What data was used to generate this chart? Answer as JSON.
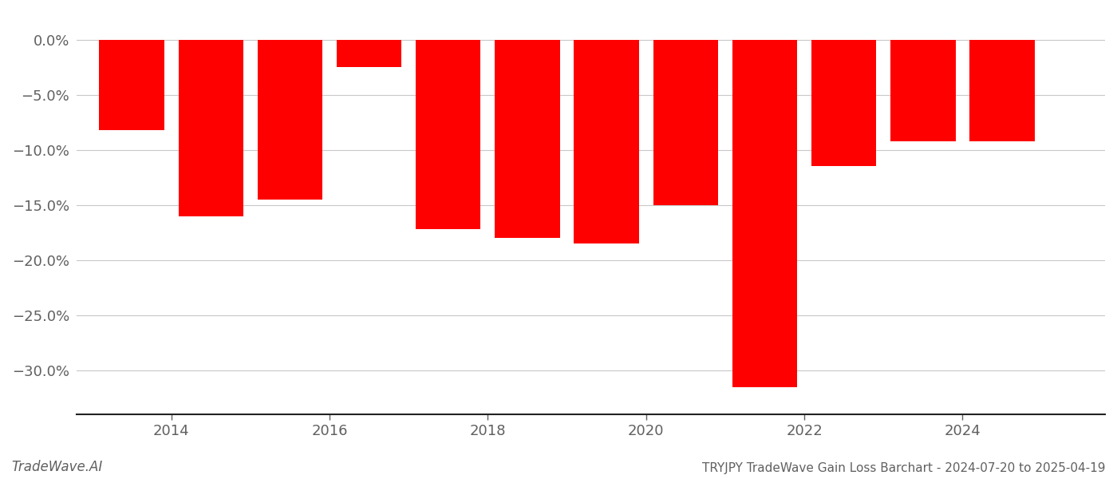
{
  "bar_centers": [
    2013.5,
    2014.5,
    2015.5,
    2016.5,
    2017.5,
    2018.5,
    2019.5,
    2020.5,
    2021.5,
    2022.5,
    2023.5,
    2024.5
  ],
  "values": [
    -8.2,
    -16.0,
    -14.5,
    -2.5,
    -17.2,
    -18.0,
    -18.5,
    -15.0,
    -31.5,
    -11.5,
    -9.2,
    -9.2
  ],
  "bar_color": "#ff0000",
  "background_color": "#ffffff",
  "grid_color": "#c8c8c8",
  "text_color": "#606060",
  "ylim": [
    -34,
    2.5
  ],
  "yticks": [
    0.0,
    -5.0,
    -10.0,
    -15.0,
    -20.0,
    -25.0,
    -30.0
  ],
  "xlim": [
    2012.8,
    2025.8
  ],
  "xlabel_ticks": [
    2014,
    2016,
    2018,
    2020,
    2022,
    2024
  ],
  "footer_left": "TradeWave.AI",
  "footer_right": "TRYJPY TradeWave Gain Loss Barchart - 2024-07-20 to 2025-04-19",
  "bar_width": 0.82
}
